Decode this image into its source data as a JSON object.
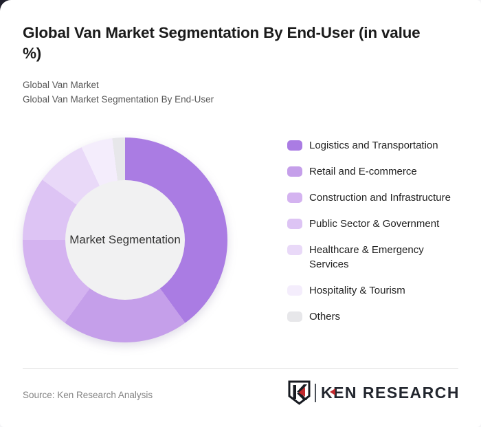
{
  "header": {
    "title": "Global Van Market Segmentation By End-User (in value %)",
    "subtitle_line1": "Global Van Market",
    "subtitle_line2": "Global Van Market Segmentation By End-User"
  },
  "chart_data": {
    "type": "pie",
    "variant": "donut",
    "title": "Global Van Market Segmentation By End-User (in value %)",
    "unit": "value %",
    "center_label": "Market Segmentation",
    "start_angle_deg": 0,
    "legend_position": "right",
    "hole_color": "#f1f1f2",
    "series": [
      {
        "label": "Logistics and Transportation",
        "value": 40,
        "color": "#aa7ce3"
      },
      {
        "label": "Retail and E-commerce",
        "value": 20,
        "color": "#c59fea"
      },
      {
        "label": "Construction and Infrastructure",
        "value": 15,
        "color": "#d4b3f0"
      },
      {
        "label": "Public Sector & Government",
        "value": 10,
        "color": "#ddc4f4"
      },
      {
        "label": "Healthcare & Emergency Services",
        "value": 8,
        "color": "#e9d9f8"
      },
      {
        "label": "Hospitality & Tourism",
        "value": 5,
        "color": "#f4edfc"
      },
      {
        "label": "Others",
        "value": 2,
        "color": "#e7e7ea"
      }
    ]
  },
  "footer": {
    "source": "Source: Ken Research Analysis",
    "logo_text": "KEN RESEARCH"
  },
  "colors": {
    "accent_red": "#c22a2e",
    "logo_dark": "#22262e",
    "divider": "#e0e0e0"
  }
}
